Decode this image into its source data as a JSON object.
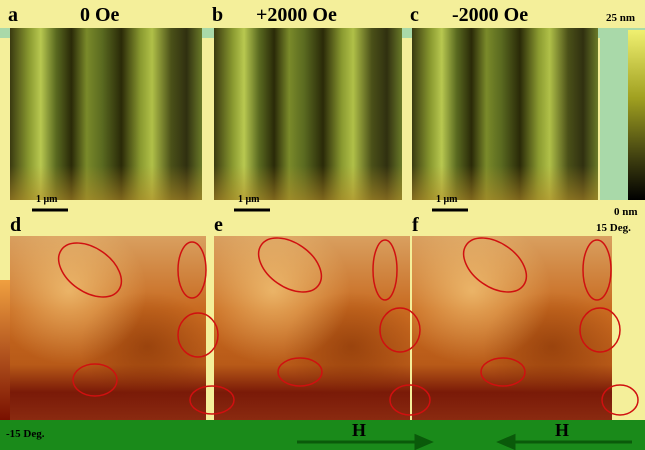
{
  "panels": [
    {
      "label": "a",
      "field": "0 Oe",
      "scale_bar": "1 μm"
    },
    {
      "label": "b",
      "field": "+2000 Oe",
      "scale_bar": "1 μm"
    },
    {
      "label": "c",
      "field": "-2000 Oe",
      "scale_bar": "1 μm"
    },
    {
      "label": "d"
    },
    {
      "label": "e"
    },
    {
      "label": "f"
    }
  ],
  "topo_colorbar": {
    "max": "25 nm",
    "min": "0 nm"
  },
  "phase_colorbar": {
    "max": "15 Deg.",
    "min": "-15 Deg."
  },
  "field_arrows": [
    "H",
    "H"
  ]
}
